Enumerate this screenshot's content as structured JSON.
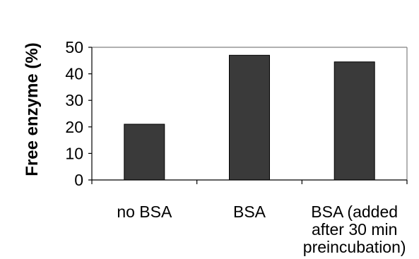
{
  "chart_data": {
    "type": "bar",
    "title": "",
    "xlabel": "",
    "ylabel": "Free enzyme (%)",
    "categories": [
      [
        "no BSA"
      ],
      [
        "BSA"
      ],
      [
        "BSA (added",
        "after 30 min",
        "preincubation)"
      ]
    ],
    "values": [
      21,
      47,
      44.5
    ],
    "ylim": [
      0,
      50
    ],
    "yticks": [
      0,
      10,
      20,
      30,
      40,
      50
    ],
    "grid": false,
    "legend": "none",
    "colors": {
      "bar": "#3a3a3a",
      "bar_stroke": "#000000",
      "axis": "#000000",
      "frame": "#808080"
    }
  }
}
